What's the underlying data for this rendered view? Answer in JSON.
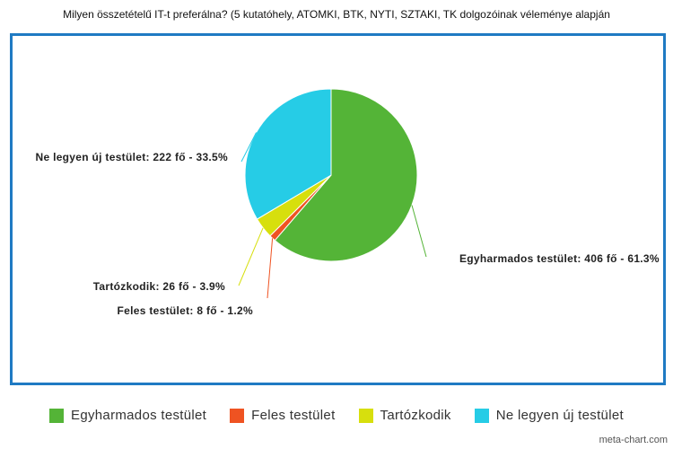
{
  "chart_data": {
    "type": "pie",
    "title": "Milyen összetételű IT-t preferálna? (5 kutatóhely, ATOMKI, BTK, NYTI, SZTAKI, TK dolgozóinak véleménye alapján",
    "unit": "fő",
    "slices": [
      {
        "name": "Egyharmados testület",
        "value": 406,
        "percent": 61.3,
        "color": "#54b437",
        "label": "Egyharmados testület: 406 fő - 61.3%"
      },
      {
        "name": "Feles testület",
        "value": 8,
        "percent": 1.2,
        "color": "#ef5322",
        "label": "Feles testület: 8 fő - 1.2%"
      },
      {
        "name": "Tartózkodik",
        "value": 26,
        "percent": 3.9,
        "color": "#d7df0d",
        "label": "Tartózkodik: 26 fő - 3.9%"
      },
      {
        "name": "Ne legyen új testület",
        "value": 222,
        "percent": 33.5,
        "color": "#26cce6",
        "label": "Ne legyen új testület: 222 fő - 33.5%"
      }
    ],
    "legend_position": "bottom"
  },
  "footer": {
    "credit": "meta-chart.com"
  }
}
